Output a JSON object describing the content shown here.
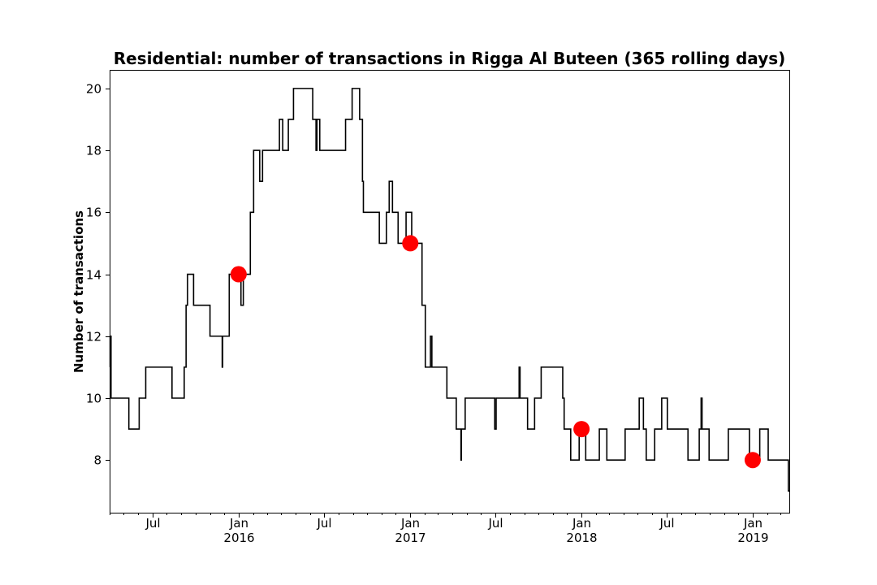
{
  "chart_data": {
    "type": "line",
    "title": "Residential: number of transactions in Rigga Al Buteen (365 rolling days)",
    "xlabel": "",
    "ylabel": "Number of transactions",
    "x_range": [
      "2015-04-01",
      "2019-03-20"
    ],
    "ylim": [
      6.3,
      20.6
    ],
    "y_ticks": [
      8,
      10,
      12,
      14,
      16,
      18,
      20
    ],
    "x_ticks": [
      {
        "date": "2015-07-01",
        "label": "Jul",
        "year": ""
      },
      {
        "date": "2016-01-01",
        "label": "Jan",
        "year": "2016"
      },
      {
        "date": "2016-07-01",
        "label": "Jul",
        "year": ""
      },
      {
        "date": "2017-01-01",
        "label": "Jan",
        "year": "2017"
      },
      {
        "date": "2017-07-01",
        "label": "Jul",
        "year": ""
      },
      {
        "date": "2018-01-01",
        "label": "Jan",
        "year": "2018"
      },
      {
        "date": "2018-07-01",
        "label": "Jul",
        "year": ""
      },
      {
        "date": "2019-01-01",
        "label": "Jan",
        "year": "2019"
      }
    ],
    "grid": false,
    "series": [
      {
        "color": "#000000",
        "style": "step",
        "points": [
          [
            "2015-04-01",
            11
          ],
          [
            "2015-04-02",
            12
          ],
          [
            "2015-04-04",
            10
          ],
          [
            "2015-05-12",
            9
          ],
          [
            "2015-06-03",
            10
          ],
          [
            "2015-06-17",
            11
          ],
          [
            "2015-08-12",
            10
          ],
          [
            "2015-09-07",
            11
          ],
          [
            "2015-09-11",
            13
          ],
          [
            "2015-09-14",
            14
          ],
          [
            "2015-09-27",
            13
          ],
          [
            "2015-11-01",
            12
          ],
          [
            "2015-11-27",
            11
          ],
          [
            "2015-11-28",
            12
          ],
          [
            "2015-12-12",
            14
          ],
          [
            "2016-01-06",
            13
          ],
          [
            "2016-01-11",
            14
          ],
          [
            "2016-01-26",
            16
          ],
          [
            "2016-02-02",
            18
          ],
          [
            "2016-02-15",
            17
          ],
          [
            "2016-02-21",
            18
          ],
          [
            "2016-03-28",
            19
          ],
          [
            "2016-04-04",
            18
          ],
          [
            "2016-04-16",
            19
          ],
          [
            "2016-04-27",
            20
          ],
          [
            "2016-06-07",
            19
          ],
          [
            "2016-06-14",
            18
          ],
          [
            "2016-06-16",
            19
          ],
          [
            "2016-06-22",
            18
          ],
          [
            "2016-08-16",
            19
          ],
          [
            "2016-08-30",
            20
          ],
          [
            "2016-09-15",
            19
          ],
          [
            "2016-09-21",
            17
          ],
          [
            "2016-09-23",
            16
          ],
          [
            "2016-10-27",
            15
          ],
          [
            "2016-11-11",
            16
          ],
          [
            "2016-11-17",
            17
          ],
          [
            "2016-11-24",
            16
          ],
          [
            "2016-12-06",
            15
          ],
          [
            "2016-12-23",
            16
          ],
          [
            "2017-01-04",
            15
          ],
          [
            "2017-01-26",
            13
          ],
          [
            "2017-02-02",
            11
          ],
          [
            "2017-02-13",
            12
          ],
          [
            "2017-02-16",
            11
          ],
          [
            "2017-03-20",
            10
          ],
          [
            "2017-04-09",
            9
          ],
          [
            "2017-04-19",
            8
          ],
          [
            "2017-04-20",
            9
          ],
          [
            "2017-04-28",
            10
          ],
          [
            "2017-06-30",
            9
          ],
          [
            "2017-07-03",
            10
          ],
          [
            "2017-08-21",
            11
          ],
          [
            "2017-08-23",
            10
          ],
          [
            "2017-09-08",
            9
          ],
          [
            "2017-09-23",
            10
          ],
          [
            "2017-10-07",
            11
          ],
          [
            "2017-11-22",
            10
          ],
          [
            "2017-11-25",
            9
          ],
          [
            "2017-12-09",
            8
          ],
          [
            "2017-12-27",
            9
          ],
          [
            "2018-01-10",
            8
          ],
          [
            "2018-02-08",
            9
          ],
          [
            "2018-02-24",
            8
          ],
          [
            "2018-04-04",
            9
          ],
          [
            "2018-05-04",
            10
          ],
          [
            "2018-05-13",
            9
          ],
          [
            "2018-05-19",
            8
          ],
          [
            "2018-06-06",
            9
          ],
          [
            "2018-06-21",
            10
          ],
          [
            "2018-07-03",
            9
          ],
          [
            "2018-08-16",
            8
          ],
          [
            "2018-09-09",
            9
          ],
          [
            "2018-09-13",
            10
          ],
          [
            "2018-09-15",
            9
          ],
          [
            "2018-09-30",
            8
          ],
          [
            "2018-11-10",
            9
          ],
          [
            "2018-12-25",
            8
          ],
          [
            "2019-01-16",
            9
          ],
          [
            "2019-02-03",
            8
          ],
          [
            "2019-03-18",
            7
          ],
          [
            "2019-03-20",
            7
          ]
        ]
      },
      {
        "color": "#ff0000",
        "style": "markers",
        "points": [
          [
            "2016-01-01",
            14
          ],
          [
            "2017-01-01",
            15
          ],
          [
            "2018-01-01",
            9
          ],
          [
            "2019-01-01",
            8
          ]
        ]
      }
    ]
  }
}
